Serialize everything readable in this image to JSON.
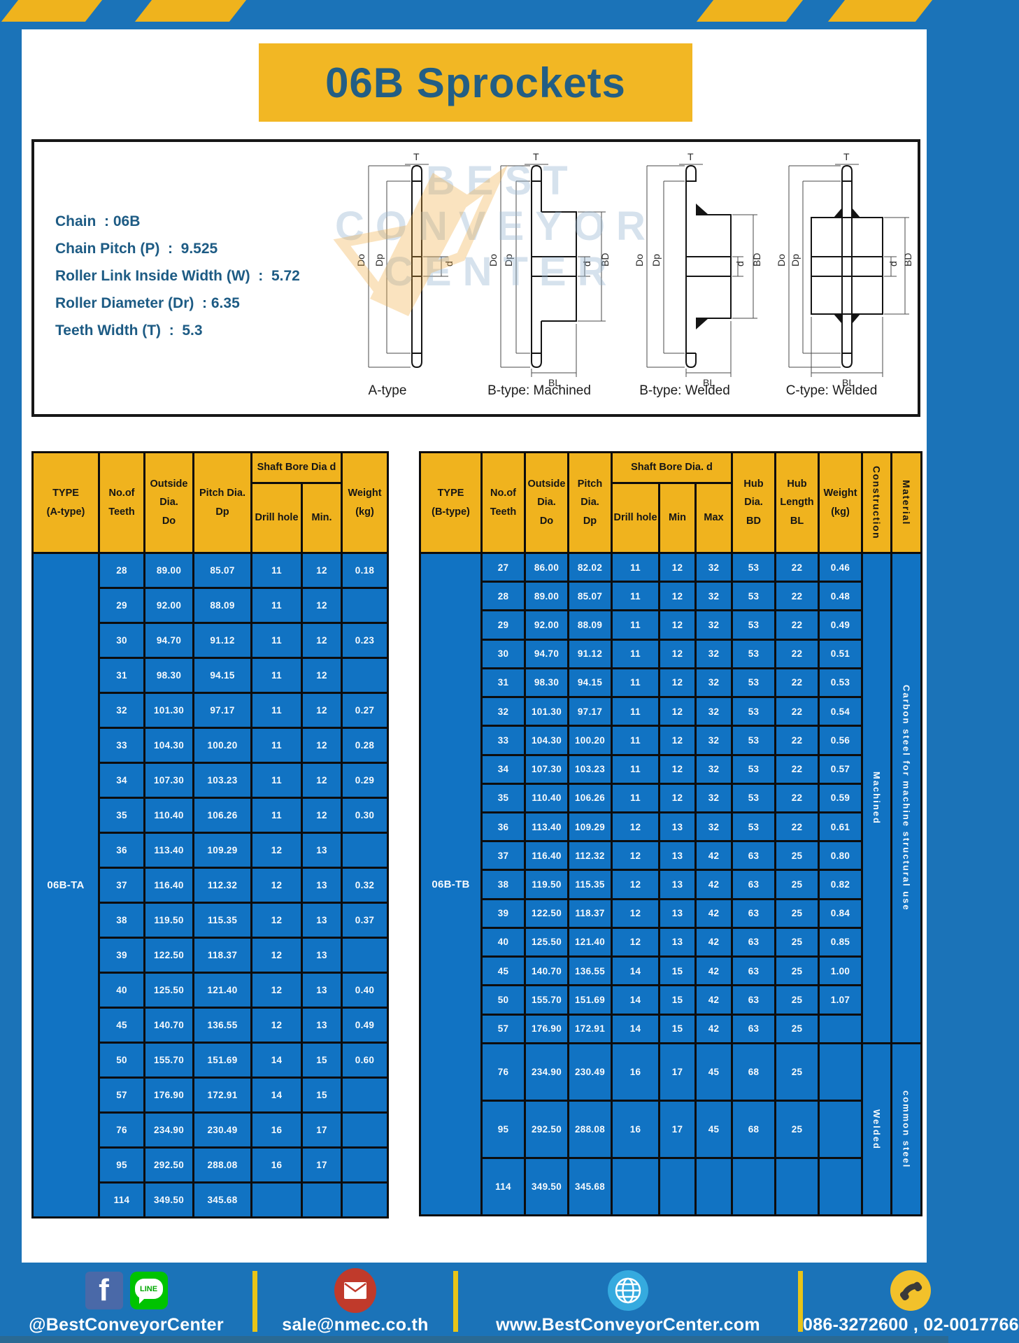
{
  "page_title": "06B Sprockets",
  "specs": {
    "lines": [
      "Chain  : 06B",
      "Chain Pitch (P)  :  9.525",
      "Roller Link Inside Width (W)  :  5.72",
      "Roller Diameter (Dr)  : 6.35",
      "Teeth Width (T)  :  5.3"
    ]
  },
  "diagrams": {
    "labels": [
      "A-type",
      "B-type: Machined",
      "B-type: Welded",
      "C-type: Welded"
    ],
    "dims": {
      "t": "T",
      "outer": "Do",
      "pitch": "Dp",
      "bore": "d",
      "hub": "BD",
      "hub_len": "BL"
    }
  },
  "watermark": {
    "lines": [
      "BEST",
      "CONVEYOR",
      "CENTER"
    ]
  },
  "table_a": {
    "type_label": "06B-TA",
    "headers": {
      "type": "TYPE\n(A-type)",
      "teeth": "No.of\nTeeth",
      "outside": "Outside\nDia.\nDo",
      "pitch": "Pitch Dia.\nDp",
      "shaft_group": "Shaft Bore Dia d",
      "drill": "Drill hole",
      "min": "Min.",
      "weight": "Weight\n(kg)"
    },
    "rows": [
      [
        "28",
        "89.00",
        "85.07",
        "11",
        "12",
        "0.18"
      ],
      [
        "29",
        "92.00",
        "88.09",
        "11",
        "12",
        ""
      ],
      [
        "30",
        "94.70",
        "91.12",
        "11",
        "12",
        "0.23"
      ],
      [
        "31",
        "98.30",
        "94.15",
        "11",
        "12",
        ""
      ],
      [
        "32",
        "101.30",
        "97.17",
        "11",
        "12",
        "0.27"
      ],
      [
        "33",
        "104.30",
        "100.20",
        "11",
        "12",
        "0.28"
      ],
      [
        "34",
        "107.30",
        "103.23",
        "11",
        "12",
        "0.29"
      ],
      [
        "35",
        "110.40",
        "106.26",
        "11",
        "12",
        "0.30"
      ],
      [
        "36",
        "113.40",
        "109.29",
        "12",
        "13",
        ""
      ],
      [
        "37",
        "116.40",
        "112.32",
        "12",
        "13",
        "0.32"
      ],
      [
        "38",
        "119.50",
        "115.35",
        "12",
        "13",
        "0.37"
      ],
      [
        "39",
        "122.50",
        "118.37",
        "12",
        "13",
        ""
      ],
      [
        "40",
        "125.50",
        "121.40",
        "12",
        "13",
        "0.40"
      ],
      [
        "45",
        "140.70",
        "136.55",
        "12",
        "13",
        "0.49"
      ],
      [
        "50",
        "155.70",
        "151.69",
        "14",
        "15",
        "0.60"
      ],
      [
        "57",
        "176.90",
        "172.91",
        "14",
        "15",
        ""
      ],
      [
        "76",
        "234.90",
        "230.49",
        "16",
        "17",
        ""
      ],
      [
        "95",
        "292.50",
        "288.08",
        "16",
        "17",
        ""
      ],
      [
        "114",
        "349.50",
        "345.68",
        "",
        "",
        ""
      ]
    ]
  },
  "table_b": {
    "type_label": "06B-TB",
    "headers": {
      "type": "TYPE\n(B-type)",
      "teeth": "No.of\nTeeth",
      "outside": "Outside\nDia.\nDo",
      "pitch": "Pitch\nDia.\nDp",
      "shaft_group": "Shaft Bore Dia. d",
      "drill": "Drill hole",
      "min": "Min",
      "max": "Max",
      "hub_dia": "Hub\nDia.\nBD",
      "hub_len": "Hub\nLength\nBL",
      "weight": "Weight\n(kg)",
      "construction": "Construction",
      "material": "Material"
    },
    "rows": [
      [
        "27",
        "86.00",
        "82.02",
        "11",
        "12",
        "32",
        "53",
        "22",
        "0.46"
      ],
      [
        "28",
        "89.00",
        "85.07",
        "11",
        "12",
        "32",
        "53",
        "22",
        "0.48"
      ],
      [
        "29",
        "92.00",
        "88.09",
        "11",
        "12",
        "32",
        "53",
        "22",
        "0.49"
      ],
      [
        "30",
        "94.70",
        "91.12",
        "11",
        "12",
        "32",
        "53",
        "22",
        "0.51"
      ],
      [
        "31",
        "98.30",
        "94.15",
        "11",
        "12",
        "32",
        "53",
        "22",
        "0.53"
      ],
      [
        "32",
        "101.30",
        "97.17",
        "11",
        "12",
        "32",
        "53",
        "22",
        "0.54"
      ],
      [
        "33",
        "104.30",
        "100.20",
        "11",
        "12",
        "32",
        "53",
        "22",
        "0.56"
      ],
      [
        "34",
        "107.30",
        "103.23",
        "11",
        "12",
        "32",
        "53",
        "22",
        "0.57"
      ],
      [
        "35",
        "110.40",
        "106.26",
        "11",
        "12",
        "32",
        "53",
        "22",
        "0.59"
      ],
      [
        "36",
        "113.40",
        "109.29",
        "12",
        "13",
        "32",
        "53",
        "22",
        "0.61"
      ],
      [
        "37",
        "116.40",
        "112.32",
        "12",
        "13",
        "42",
        "63",
        "25",
        "0.80"
      ],
      [
        "38",
        "119.50",
        "115.35",
        "12",
        "13",
        "42",
        "63",
        "25",
        "0.82"
      ],
      [
        "39",
        "122.50",
        "118.37",
        "12",
        "13",
        "42",
        "63",
        "25",
        "0.84"
      ],
      [
        "40",
        "125.50",
        "121.40",
        "12",
        "13",
        "42",
        "63",
        "25",
        "0.85"
      ],
      [
        "45",
        "140.70",
        "136.55",
        "14",
        "15",
        "42",
        "63",
        "25",
        "1.00"
      ],
      [
        "50",
        "155.70",
        "151.69",
        "14",
        "15",
        "42",
        "63",
        "25",
        "1.07"
      ],
      [
        "57",
        "176.90",
        "172.91",
        "14",
        "15",
        "42",
        "63",
        "25",
        ""
      ],
      [
        "76",
        "234.90",
        "230.49",
        "16",
        "17",
        "45",
        "68",
        "25",
        ""
      ],
      [
        "95",
        "292.50",
        "288.08",
        "16",
        "17",
        "45",
        "68",
        "25",
        ""
      ],
      [
        "114",
        "349.50",
        "345.68",
        "",
        "",
        "",
        "",
        "",
        ""
      ]
    ],
    "span_cells": [
      {
        "text": "Machined",
        "from": 0,
        "span": 17
      },
      {
        "text": "Carbon steel for machine structural use",
        "from": 0,
        "span": 17
      },
      {
        "text": "Welded",
        "from": 17,
        "span": 3
      },
      {
        "text": "common steel",
        "from": 17,
        "span": 3
      }
    ]
  },
  "footer": {
    "social": "@BestConveyorCenter",
    "line_label": "LINE",
    "email": "sale@nmec.co.th",
    "website": "www.BestConveyorCenter.com",
    "phone": "086-3272600 , 02-0017766"
  }
}
